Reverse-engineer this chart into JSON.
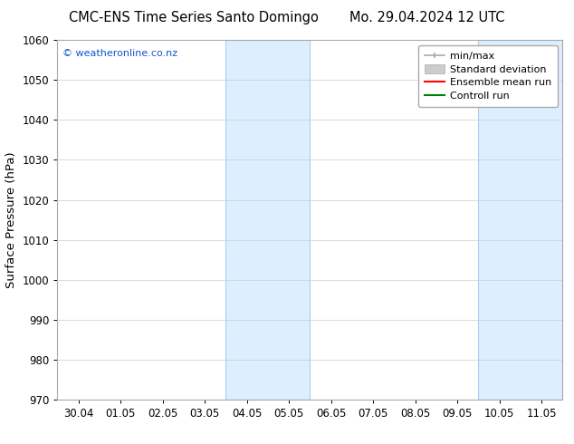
{
  "title_left": "CMC-ENS Time Series Santo Domingo",
  "title_right": "Mo. 29.04.2024 12 UTC",
  "ylabel": "Surface Pressure (hPa)",
  "ylim": [
    970,
    1060
  ],
  "yticks": [
    970,
    980,
    990,
    1000,
    1010,
    1020,
    1030,
    1040,
    1050,
    1060
  ],
  "xtick_labels": [
    "30.04",
    "01.05",
    "02.05",
    "03.05",
    "04.05",
    "05.05",
    "06.05",
    "07.05",
    "08.05",
    "09.05",
    "10.05",
    "11.05"
  ],
  "x_values": [
    0,
    1,
    2,
    3,
    4,
    5,
    6,
    7,
    8,
    9,
    10,
    11
  ],
  "xlim": [
    -0.5,
    11.5
  ],
  "shaded_regions": [
    {
      "x_start": 3.5,
      "x_end": 5.5
    },
    {
      "x_start": 9.5,
      "x_end": 11.5
    }
  ],
  "shaded_color": "#ddeeff",
  "shaded_edge_color": "#aaccee",
  "watermark_text": "© weatheronline.co.nz",
  "watermark_color": "#1155cc",
  "legend_items": [
    {
      "label": "min/max",
      "color": "#aaaaaa"
    },
    {
      "label": "Standard deviation",
      "color": "#cccccc"
    },
    {
      "label": "Ensemble mean run",
      "color": "red"
    },
    {
      "label": "Controll run",
      "color": "green"
    }
  ],
  "bg_color": "#ffffff",
  "grid_color": "#cccccc",
  "title_fontsize": 10.5,
  "tick_fontsize": 8.5,
  "ylabel_fontsize": 9.5,
  "watermark_fontsize": 8,
  "legend_fontsize": 8
}
